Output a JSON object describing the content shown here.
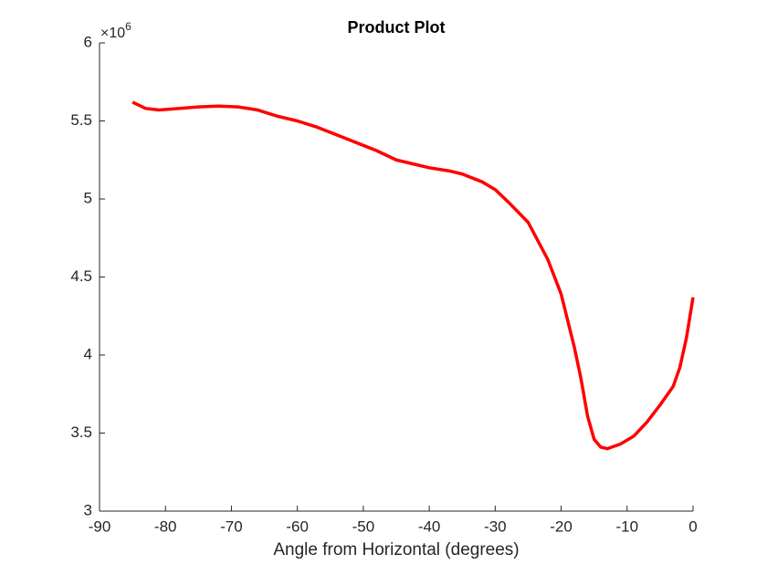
{
  "chart_data": {
    "type": "line",
    "title": "Product Plot",
    "x_label": "Angle from Horizontal (degrees)",
    "y_multiplier": {
      "base": "×10",
      "exponent": "6"
    },
    "x": [
      -85,
      -83,
      -81,
      -78,
      -75,
      -72,
      -69,
      -66,
      -63,
      -60,
      -57,
      -54,
      -51,
      -48,
      -45,
      -42,
      -40,
      -37,
      -35,
      -32,
      -30,
      -28,
      -25,
      -22,
      -20,
      -18,
      -17,
      -16,
      -15,
      -14,
      -13,
      -11,
      -9,
      -7,
      -5,
      -3,
      -2,
      -1,
      0
    ],
    "series": [
      {
        "color": "#ff0000",
        "values": [
          5.62,
          5.58,
          5.57,
          5.58,
          5.59,
          5.595,
          5.59,
          5.57,
          5.53,
          5.5,
          5.46,
          5.41,
          5.36,
          5.31,
          5.25,
          5.22,
          5.2,
          5.18,
          5.16,
          5.11,
          5.06,
          4.98,
          4.85,
          4.61,
          4.39,
          4.05,
          3.85,
          3.61,
          3.46,
          3.41,
          3.4,
          3.43,
          3.48,
          3.57,
          3.68,
          3.8,
          3.92,
          4.11,
          4.37
        ]
      }
    ],
    "xlim": [
      -90,
      0
    ],
    "xticks": [
      -90,
      -80,
      -70,
      -60,
      -50,
      -40,
      -30,
      -20,
      -10,
      0
    ],
    "ylim": [
      3,
      6
    ],
    "yticks": [
      3,
      3.5,
      4,
      4.5,
      5,
      5.5,
      6
    ],
    "grid": false
  }
}
